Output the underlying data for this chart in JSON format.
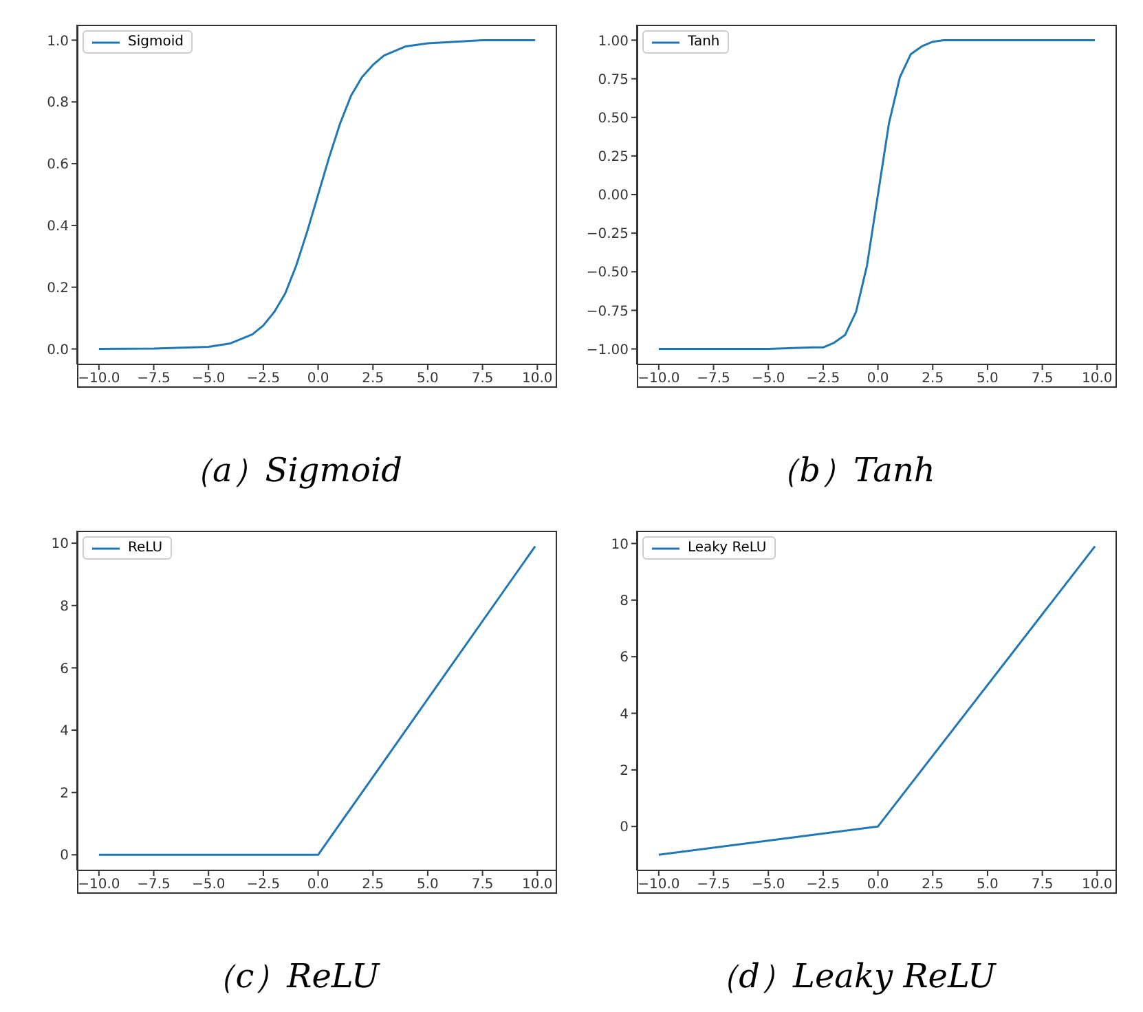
{
  "chart_data": [
    {
      "type": "line",
      "annotations": [
        "（a）Sigmoid"
      ],
      "legend": "top left",
      "grid": false,
      "marker": "none",
      "line_style": "solid",
      "x": [
        -10,
        -7.5,
        -5,
        -4,
        -3,
        -2.5,
        -2,
        -1.5,
        -1,
        -0.5,
        0,
        0.5,
        1,
        1.5,
        2,
        2.5,
        3,
        4,
        5,
        7.5,
        9.9
      ],
      "series": [
        {
          "name": "Sigmoid",
          "color": "#1f77b4",
          "values": [
            0,
            0.001,
            0.007,
            0.018,
            0.047,
            0.076,
            0.12,
            0.18,
            0.27,
            0.38,
            0.5,
            0.62,
            0.73,
            0.82,
            0.88,
            0.92,
            0.95,
            0.98,
            0.99,
            1.0,
            1.0
          ]
        }
      ],
      "xlim": [
        -11,
        10.9
      ],
      "xticks": [
        {
          "value": -10,
          "label": "−10.0"
        },
        {
          "value": -7.5,
          "label": "−7.5"
        },
        {
          "value": -5,
          "label": "−5.0"
        },
        {
          "value": -2.5,
          "label": "−2.5"
        },
        {
          "value": 0,
          "label": "0.0"
        },
        {
          "value": 2.5,
          "label": "2.5"
        },
        {
          "value": 5,
          "label": "5.0"
        },
        {
          "value": 7.5,
          "label": "7.5"
        },
        {
          "value": 10,
          "label": "10.0"
        }
      ],
      "ylim": [
        -0.05,
        1.05
      ],
      "yticks": [
        {
          "value": 0,
          "label": "0.0"
        },
        0.2,
        0.4,
        0.6,
        0.8,
        {
          "value": 1,
          "label": "1.0"
        }
      ]
    },
    {
      "type": "line",
      "annotations": [
        "（b）Tanh"
      ],
      "legend": "top left",
      "grid": false,
      "marker": "none",
      "line_style": "solid",
      "x": [
        -10,
        -5,
        -3,
        -2.5,
        -2,
        -1.5,
        -1,
        -0.5,
        0,
        0.5,
        1,
        1.5,
        2,
        2.5,
        3,
        5,
        9.9
      ],
      "series": [
        {
          "name": "Tanh",
          "color": "#1f77b4",
          "values": [
            -1,
            -1,
            -0.99,
            -0.99,
            -0.96,
            -0.91,
            -0.76,
            -0.46,
            0,
            0.46,
            0.76,
            0.91,
            0.96,
            0.99,
            1.0,
            1,
            1
          ]
        }
      ],
      "xlim": [
        -11,
        10.9
      ],
      "xticks": [
        {
          "value": -10,
          "label": "−10.0"
        },
        {
          "value": -7.5,
          "label": "−7.5"
        },
        {
          "value": -5,
          "label": "−5.0"
        },
        {
          "value": -2.5,
          "label": "−2.5"
        },
        {
          "value": 0,
          "label": "0.0"
        },
        {
          "value": 2.5,
          "label": "2.5"
        },
        {
          "value": 5,
          "label": "5.0"
        },
        {
          "value": 7.5,
          "label": "7.5"
        },
        {
          "value": 10,
          "label": "10.0"
        }
      ],
      "ylim": [
        -1.1,
        1.1
      ],
      "yticks": [
        {
          "value": -1,
          "label": "−1.00"
        },
        {
          "value": -0.75,
          "label": "−0.75"
        },
        {
          "value": -0.5,
          "label": "−0.50"
        },
        {
          "value": -0.25,
          "label": "−0.25"
        },
        {
          "value": 0,
          "label": "0.00"
        },
        0.25,
        {
          "value": 0.5,
          "label": "0.50"
        },
        0.75,
        {
          "value": 1,
          "label": "1.00"
        }
      ]
    },
    {
      "type": "line",
      "annotations": [
        "（c）ReLU"
      ],
      "legend": "top left",
      "grid": false,
      "marker": "none",
      "line_style": "solid",
      "x": [
        -10,
        0,
        9.9
      ],
      "series": [
        {
          "name": "ReLU",
          "color": "#1f77b4",
          "values": [
            0,
            0,
            9.9
          ]
        }
      ],
      "xlim": [
        -11,
        10.9
      ],
      "xticks": [
        {
          "value": -10,
          "label": "−10.0"
        },
        {
          "value": -7.5,
          "label": "−7.5"
        },
        {
          "value": -5,
          "label": "−5.0"
        },
        {
          "value": -2.5,
          "label": "−2.5"
        },
        {
          "value": 0,
          "label": "0.0"
        },
        {
          "value": 2.5,
          "label": "2.5"
        },
        {
          "value": 5,
          "label": "5.0"
        },
        {
          "value": 7.5,
          "label": "7.5"
        },
        {
          "value": 10,
          "label": "10.0"
        }
      ],
      "ylim": [
        -0.5,
        10.4
      ],
      "yticks": [
        0,
        2,
        4,
        6,
        8,
        10
      ]
    },
    {
      "type": "line",
      "annotations": [
        "（d）Leaky ReLU"
      ],
      "legend": "top left",
      "grid": false,
      "marker": "none",
      "line_style": "solid",
      "x": [
        -10,
        0,
        9.9
      ],
      "series": [
        {
          "name": "Leaky ReLU",
          "color": "#1f77b4",
          "values": [
            -1,
            0,
            9.9
          ]
        }
      ],
      "xlim": [
        -11,
        10.9
      ],
      "xticks": [
        {
          "value": -10,
          "label": "−10.0"
        },
        {
          "value": -7.5,
          "label": "−7.5"
        },
        {
          "value": -5,
          "label": "−5.0"
        },
        {
          "value": -2.5,
          "label": "−2.5"
        },
        {
          "value": 0,
          "label": "0.0"
        },
        {
          "value": 2.5,
          "label": "2.5"
        },
        {
          "value": 5,
          "label": "5.0"
        },
        {
          "value": 7.5,
          "label": "7.5"
        },
        {
          "value": 10,
          "label": "10.0"
        }
      ],
      "ylim": [
        -1.55,
        10.45
      ],
      "yticks": [
        0,
        2,
        4,
        6,
        8,
        10
      ]
    }
  ]
}
